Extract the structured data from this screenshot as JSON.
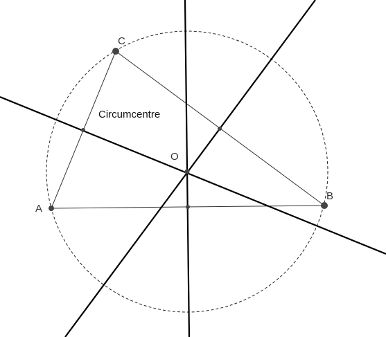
{
  "diagram": {
    "caption": "Circumcentre",
    "points": {
      "A": "A",
      "B": "B",
      "C": "C",
      "O": "O"
    }
  }
}
